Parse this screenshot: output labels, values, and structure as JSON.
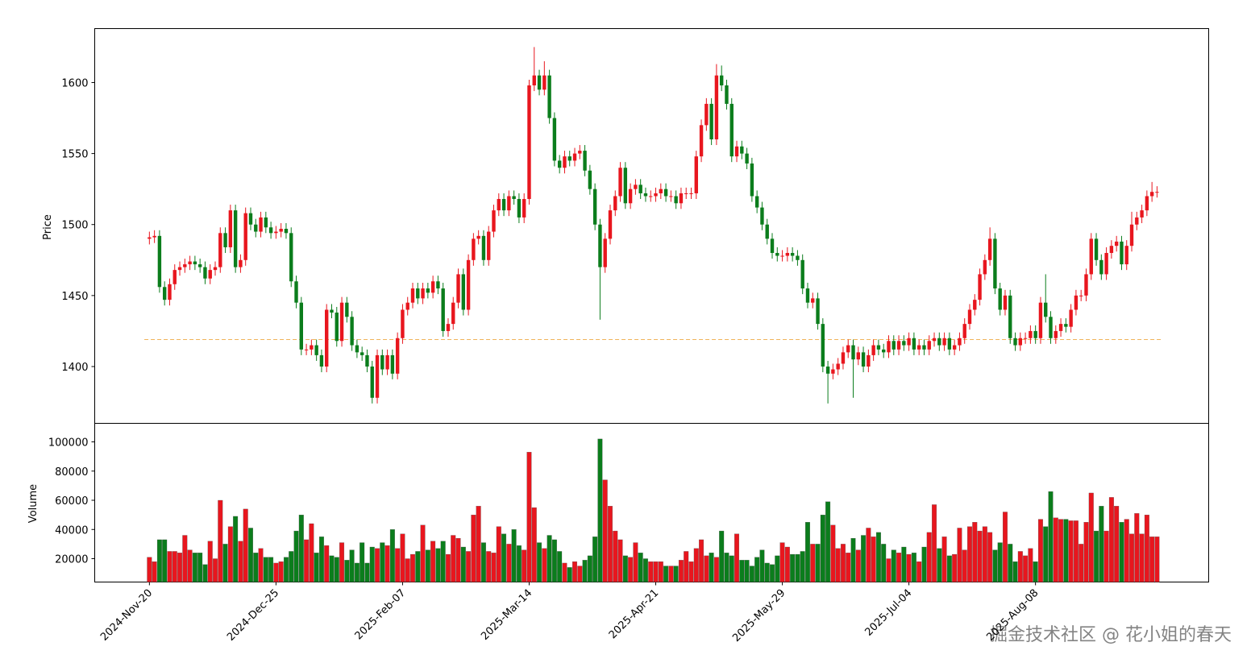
{
  "chart_data": {
    "type": "candlestick",
    "ylabel": "Price",
    "volume_label": "Volume",
    "watermark": "掘金技术社区 @ 花小姐的春天",
    "up_color": "#e8161e",
    "down_color": "#0b7d1c",
    "hline": {
      "value": 1419,
      "color": "#f0b35a"
    },
    "xlim": [
      -10.8,
      209.2
    ],
    "xticks": [
      {
        "value": 0,
        "label": "2024-Nov-20"
      },
      {
        "value": 25,
        "label": "2024-Dec-25"
      },
      {
        "value": 50,
        "label": "2025-Feb-07"
      },
      {
        "value": 75,
        "label": "2025-Mar-14"
      },
      {
        "value": 100,
        "label": "2025-Apr-21"
      },
      {
        "value": 125,
        "label": "2025-May-29"
      },
      {
        "value": 150,
        "label": "2025-Jul-04"
      },
      {
        "value": 175,
        "label": "2025-Aug-08"
      }
    ],
    "ylim": [
      1360,
      1638
    ],
    "yticks": [
      1400,
      1450,
      1500,
      1550,
      1600
    ],
    "volume_ylim": [
      4000,
      112700
    ],
    "volume_yticks": [
      20000,
      40000,
      60000,
      80000,
      100000
    ],
    "open": [
      1490,
      1491,
      1492,
      1456,
      1447,
      1458,
      1468,
      1470,
      1472,
      1474,
      1472,
      1470,
      1462,
      1468,
      1470,
      1494,
      1484,
      1510,
      1470,
      1475,
      1508,
      1500,
      1495,
      1505,
      1498,
      1494,
      1495,
      1497,
      1494,
      1460,
      1445,
      1412,
      1412,
      1415,
      1408,
      1400,
      1440,
      1438,
      1418,
      1445,
      1435,
      1415,
      1410,
      1408,
      1400,
      1378,
      1408,
      1398,
      1408,
      1395,
      1420,
      1440,
      1445,
      1455,
      1448,
      1455,
      1452,
      1460,
      1455,
      1425,
      1430,
      1445,
      1465,
      1440,
      1475,
      1490,
      1492,
      1475,
      1495,
      1510,
      1518,
      1510,
      1520,
      1518,
      1505,
      1518,
      1598,
      1605,
      1595,
      1605,
      1575,
      1545,
      1540,
      1548,
      1545,
      1550,
      1552,
      1538,
      1525,
      1500,
      1470,
      1490,
      1510,
      1520,
      1540,
      1515,
      1525,
      1528,
      1522,
      1520,
      1520,
      1522,
      1525,
      1520,
      1520,
      1515,
      1522,
      1522,
      1522,
      1548,
      1570,
      1585,
      1560,
      1605,
      1598,
      1585,
      1548,
      1555,
      1550,
      1543,
      1520,
      1512,
      1500,
      1490,
      1480,
      1478,
      1478,
      1480,
      1478,
      1475,
      1455,
      1445,
      1448,
      1430,
      1400,
      1395,
      1398,
      1402,
      1410,
      1415,
      1405,
      1410,
      1400,
      1408,
      1415,
      1412,
      1410,
      1418,
      1412,
      1418,
      1415,
      1420,
      1412,
      1415,
      1412,
      1418,
      1420,
      1415,
      1420,
      1412,
      1415,
      1420,
      1430,
      1440,
      1447,
      1465,
      1475,
      1490,
      1455,
      1440,
      1450,
      1420,
      1415,
      1420,
      1420,
      1425,
      1420,
      1445,
      1435,
      1420,
      1425,
      1430,
      1428,
      1440,
      1450,
      1450,
      1465,
      1490,
      1475,
      1465,
      1480,
      1485,
      1488,
      1472,
      1485,
      1500,
      1505,
      1510,
      1520,
      1523
    ],
    "high": [
      1495,
      1496,
      1496,
      1460,
      1462,
      1472,
      1474,
      1476,
      1478,
      1478,
      1476,
      1474,
      1472,
      1474,
      1498,
      1498,
      1514,
      1514,
      1479,
      1512,
      1512,
      1504,
      1509,
      1509,
      1502,
      1499,
      1501,
      1501,
      1498,
      1464,
      1449,
      1416,
      1419,
      1419,
      1412,
      1444,
      1444,
      1442,
      1449,
      1449,
      1439,
      1419,
      1414,
      1412,
      1404,
      1412,
      1412,
      1412,
      1412,
      1424,
      1444,
      1449,
      1459,
      1459,
      1459,
      1459,
      1464,
      1464,
      1459,
      1434,
      1449,
      1469,
      1469,
      1479,
      1494,
      1496,
      1496,
      1499,
      1514,
      1522,
      1522,
      1524,
      1524,
      1522,
      1522,
      1602,
      1625,
      1609,
      1615,
      1609,
      1579,
      1549,
      1552,
      1552,
      1554,
      1556,
      1556,
      1542,
      1529,
      1504,
      1494,
      1514,
      1524,
      1544,
      1544,
      1529,
      1532,
      1532,
      1526,
      1524,
      1526,
      1529,
      1529,
      1524,
      1524,
      1526,
      1526,
      1526,
      1552,
      1574,
      1589,
      1589,
      1613,
      1612,
      1602,
      1589,
      1559,
      1559,
      1554,
      1547,
      1524,
      1516,
      1504,
      1494,
      1484,
      1482,
      1484,
      1484,
      1482,
      1479,
      1459,
      1452,
      1452,
      1434,
      1404,
      1402,
      1406,
      1414,
      1419,
      1419,
      1414,
      1414,
      1412,
      1419,
      1419,
      1416,
      1422,
      1422,
      1422,
      1422,
      1424,
      1424,
      1419,
      1419,
      1422,
      1424,
      1424,
      1424,
      1424,
      1419,
      1424,
      1434,
      1444,
      1451,
      1469,
      1479,
      1498,
      1494,
      1459,
      1454,
      1454,
      1424,
      1424,
      1424,
      1429,
      1429,
      1449,
      1465,
      1439,
      1429,
      1434,
      1434,
      1444,
      1454,
      1454,
      1469,
      1494,
      1494,
      1479,
      1484,
      1489,
      1492,
      1492,
      1489,
      1509,
      1509,
      1514,
      1524,
      1530,
      1527
    ],
    "low": [
      1486,
      1487,
      1452,
      1443,
      1443,
      1454,
      1464,
      1466,
      1468,
      1468,
      1466,
      1458,
      1458,
      1464,
      1466,
      1480,
      1480,
      1466,
      1466,
      1471,
      1496,
      1491,
      1491,
      1494,
      1490,
      1490,
      1491,
      1490,
      1456,
      1441,
      1408,
      1408,
      1408,
      1404,
      1396,
      1396,
      1434,
      1414,
      1414,
      1431,
      1411,
      1406,
      1404,
      1396,
      1374,
      1374,
      1394,
      1394,
      1391,
      1391,
      1416,
      1436,
      1441,
      1444,
      1444,
      1448,
      1448,
      1451,
      1421,
      1421,
      1426,
      1441,
      1436,
      1436,
      1471,
      1486,
      1471,
      1471,
      1491,
      1506,
      1506,
      1506,
      1514,
      1501,
      1501,
      1514,
      1594,
      1591,
      1591,
      1571,
      1541,
      1536,
      1536,
      1541,
      1541,
      1546,
      1534,
      1521,
      1496,
      1433,
      1466,
      1486,
      1506,
      1516,
      1511,
      1511,
      1521,
      1518,
      1516,
      1516,
      1516,
      1518,
      1516,
      1516,
      1511,
      1511,
      1518,
      1518,
      1518,
      1544,
      1566,
      1556,
      1556,
      1594,
      1581,
      1544,
      1544,
      1546,
      1539,
      1516,
      1508,
      1496,
      1486,
      1476,
      1474,
      1474,
      1474,
      1474,
      1471,
      1451,
      1441,
      1441,
      1426,
      1396,
      1374,
      1391,
      1394,
      1398,
      1406,
      1378,
      1401,
      1396,
      1396,
      1404,
      1408,
      1406,
      1406,
      1408,
      1408,
      1411,
      1411,
      1408,
      1408,
      1408,
      1408,
      1414,
      1411,
      1411,
      1408,
      1408,
      1411,
      1416,
      1426,
      1436,
      1443,
      1461,
      1471,
      1451,
      1436,
      1436,
      1416,
      1411,
      1411,
      1416,
      1416,
      1416,
      1416,
      1431,
      1416,
      1416,
      1421,
      1424,
      1424,
      1436,
      1446,
      1446,
      1461,
      1471,
      1461,
      1461,
      1476,
      1481,
      1468,
      1468,
      1481,
      1496,
      1501,
      1506,
      1516,
      1519
    ],
    "close": [
      1491,
      1492,
      1456,
      1447,
      1458,
      1468,
      1470,
      1472,
      1474,
      1472,
      1470,
      1462,
      1468,
      1470,
      1494,
      1484,
      1510,
      1470,
      1475,
      1508,
      1500,
      1495,
      1505,
      1498,
      1494,
      1495,
      1497,
      1494,
      1460,
      1445,
      1412,
      1412,
      1415,
      1408,
      1400,
      1440,
      1438,
      1418,
      1445,
      1435,
      1415,
      1410,
      1408,
      1400,
      1378,
      1408,
      1398,
      1408,
      1395,
      1420,
      1440,
      1445,
      1455,
      1448,
      1455,
      1452,
      1460,
      1455,
      1425,
      1430,
      1445,
      1465,
      1440,
      1475,
      1490,
      1492,
      1475,
      1495,
      1510,
      1518,
      1510,
      1520,
      1518,
      1505,
      1518,
      1598,
      1605,
      1595,
      1605,
      1575,
      1545,
      1540,
      1548,
      1545,
      1550,
      1552,
      1538,
      1525,
      1500,
      1470,
      1490,
      1510,
      1520,
      1540,
      1515,
      1525,
      1528,
      1522,
      1520,
      1520,
      1522,
      1525,
      1520,
      1520,
      1515,
      1522,
      1522,
      1522,
      1548,
      1570,
      1585,
      1560,
      1605,
      1598,
      1585,
      1548,
      1555,
      1550,
      1543,
      1520,
      1512,
      1500,
      1490,
      1480,
      1478,
      1478,
      1480,
      1478,
      1475,
      1455,
      1445,
      1448,
      1430,
      1400,
      1395,
      1398,
      1402,
      1410,
      1415,
      1405,
      1410,
      1400,
      1408,
      1415,
      1412,
      1410,
      1418,
      1412,
      1418,
      1415,
      1420,
      1412,
      1415,
      1412,
      1418,
      1420,
      1415,
      1420,
      1412,
      1415,
      1420,
      1430,
      1440,
      1447,
      1465,
      1475,
      1490,
      1455,
      1440,
      1450,
      1420,
      1415,
      1420,
      1420,
      1425,
      1420,
      1445,
      1435,
      1420,
      1425,
      1430,
      1428,
      1440,
      1450,
      1450,
      1465,
      1490,
      1475,
      1465,
      1480,
      1485,
      1488,
      1472,
      1485,
      1500,
      1505,
      1510,
      1520,
      1523,
      1523
    ],
    "volume": [
      21000,
      18000,
      33000,
      33000,
      25000,
      25000,
      24000,
      36000,
      26000,
      24000,
      24000,
      16000,
      32000,
      20000,
      60000,
      30000,
      42000,
      49000,
      32000,
      54000,
      41000,
      24000,
      27000,
      21000,
      21000,
      17000,
      18000,
      21000,
      25000,
      39000,
      50000,
      33000,
      44000,
      24000,
      35000,
      29000,
      22000,
      21000,
      31000,
      19000,
      26000,
      17000,
      31000,
      17000,
      28000,
      27000,
      31000,
      29000,
      40000,
      27000,
      37000,
      20000,
      23000,
      25000,
      43000,
      26000,
      32000,
      27000,
      32000,
      23000,
      36000,
      34000,
      28000,
      25000,
      50000,
      56000,
      31000,
      25000,
      24000,
      42000,
      37000,
      30000,
      40000,
      29000,
      26000,
      93000,
      55000,
      31000,
      27000,
      36000,
      33000,
      25000,
      17000,
      14000,
      18000,
      15000,
      19000,
      22000,
      35000,
      102000,
      74000,
      56000,
      39000,
      33000,
      22000,
      21000,
      31000,
      24000,
      20000,
      18000,
      18000,
      18000,
      15000,
      15000,
      15000,
      19000,
      25000,
      18000,
      27000,
      33000,
      22000,
      24000,
      21000,
      39000,
      24000,
      22000,
      37000,
      19000,
      19000,
      15000,
      21000,
      26000,
      17000,
      16000,
      22000,
      31000,
      28000,
      23000,
      23000,
      25000,
      45000,
      30000,
      30000,
      50000,
      59000,
      43000,
      27000,
      30000,
      24000,
      34000,
      26000,
      36000,
      41000,
      35000,
      38000,
      30000,
      20000,
      26000,
      24000,
      28000,
      23000,
      24000,
      18000,
      28000,
      38000,
      57000,
      27000,
      35000,
      22000,
      23000,
      41000,
      26000,
      42000,
      45000,
      39000,
      42000,
      38000,
      26000,
      31000,
      52000,
      30000,
      18000,
      25000,
      22000,
      27000,
      18000,
      47000,
      42000,
      66000,
      48000,
      47000,
      47000,
      46000,
      46000,
      30000,
      45000,
      65000,
      39000,
      56000,
      39000,
      62000,
      56000,
      45000,
      47000,
      37000,
      51000,
      37000,
      50000,
      35000,
      35000
    ]
  }
}
